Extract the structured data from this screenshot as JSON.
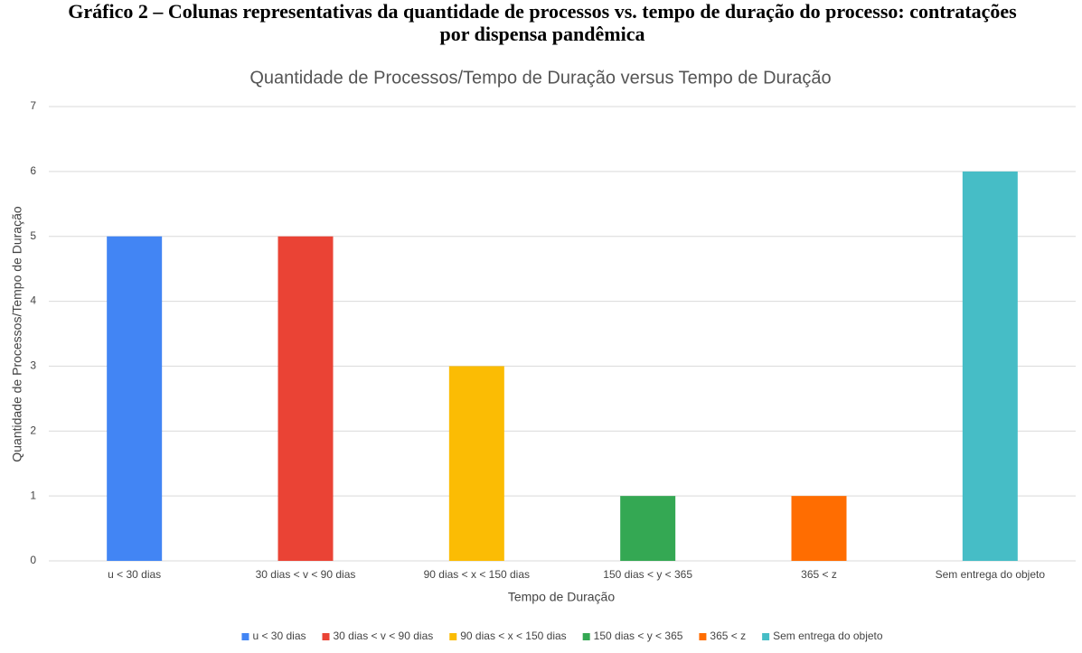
{
  "caption": "Gráfico 2 – Colunas representativas da quantidade de processos vs. tempo de duração do processo: contratações por dispensa pandêmica",
  "chart_data": {
    "type": "bar",
    "title": "Quantidade de Processos/Tempo de Duração versus Tempo de Duração",
    "x_label": "Tempo de Duração",
    "y_label": "Quantidade de Processos/Tempo de Duração",
    "categories": [
      "u < 30 dias",
      "30 dias < v < 90 dias",
      "90 dias < x < 150 dias",
      "150 dias < y < 365",
      "365 < z",
      "Sem entrega do objeto"
    ],
    "values": [
      5,
      5,
      3,
      1,
      1,
      6
    ],
    "colors": [
      "#4285f4",
      "#ea4335",
      "#fbbc04",
      "#34a853",
      "#ff6d01",
      "#46bdc6"
    ],
    "ylim": [
      0,
      7
    ],
    "yticks": [
      0,
      1,
      2,
      3,
      4,
      5,
      6,
      7
    ],
    "grid": true,
    "legend": "bottom"
  }
}
